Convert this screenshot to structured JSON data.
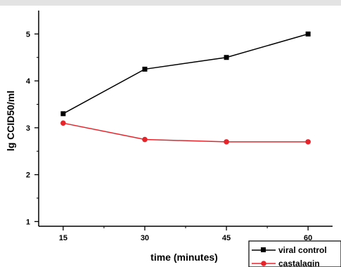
{
  "chart_data": {
    "type": "line",
    "title": "",
    "xlabel": "time (minutes)",
    "ylabel": "lg CCID50/ml",
    "x": [
      15,
      30,
      45,
      60
    ],
    "xticks": [
      "15",
      "30",
      "45",
      "60"
    ],
    "yticks": [
      "1",
      "2",
      "3",
      "4",
      "5"
    ],
    "xlim": [
      10.5,
      64.5
    ],
    "ylim": [
      0.9,
      5.5
    ],
    "grid": false,
    "legend_position": "bottom-right",
    "series": [
      {
        "name": "viral control",
        "color": "#000000",
        "marker": "square",
        "values": [
          3.3,
          4.25,
          4.5,
          5.0
        ]
      },
      {
        "name": "castalagin",
        "color": "#e8242b",
        "marker": "circle",
        "values": [
          3.1,
          2.75,
          2.7,
          2.7
        ]
      }
    ]
  }
}
